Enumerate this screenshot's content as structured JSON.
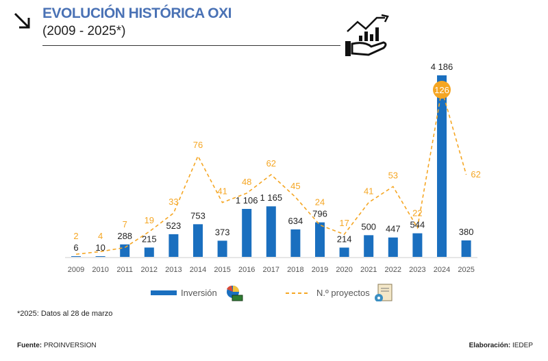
{
  "header": {
    "title": "EVOLUCIÓN HISTÓRICA OXI",
    "subtitle": "(2009 - 2025*)"
  },
  "footer": {
    "note": "*2025: Datos al 28 de marzo",
    "source_label": "Fuente:",
    "source": "PROINVERSION",
    "credit_label": "Elaboración:",
    "credit": "IEDEP"
  },
  "colors": {
    "bar": "#1a6fbf",
    "line": "#f5a623",
    "title": "#4a72b5"
  },
  "chart_data": {
    "type": "bar",
    "title": "EVOLUCIÓN HISTÓRICA OXI (2009 - 2025*)",
    "categories": [
      "2009",
      "2010",
      "2011",
      "2012",
      "2013",
      "2014",
      "2015",
      "2016",
      "2017",
      "2018",
      "2019",
      "2020",
      "2021",
      "2022",
      "2023",
      "2024",
      "2025"
    ],
    "series": [
      {
        "name": "Inversión",
        "type": "bar",
        "values": [
          6,
          10,
          288,
          215,
          523,
          753,
          373,
          1106,
          1165,
          634,
          796,
          214,
          500,
          447,
          544,
          4186,
          380
        ],
        "labels": [
          "6",
          "10",
          "288",
          "215",
          "523",
          "753",
          "373",
          "1 106",
          "1 165",
          "634",
          "796",
          "214",
          "500",
          "447",
          "544",
          "4 186",
          "380"
        ]
      },
      {
        "name": "N.º proyectos",
        "type": "line",
        "style": "dashed",
        "values": [
          2,
          4,
          7,
          19,
          33,
          76,
          41,
          48,
          62,
          45,
          24,
          17,
          41,
          53,
          22,
          126,
          62
        ]
      }
    ],
    "legend": "bottom-center",
    "grid": false
  }
}
